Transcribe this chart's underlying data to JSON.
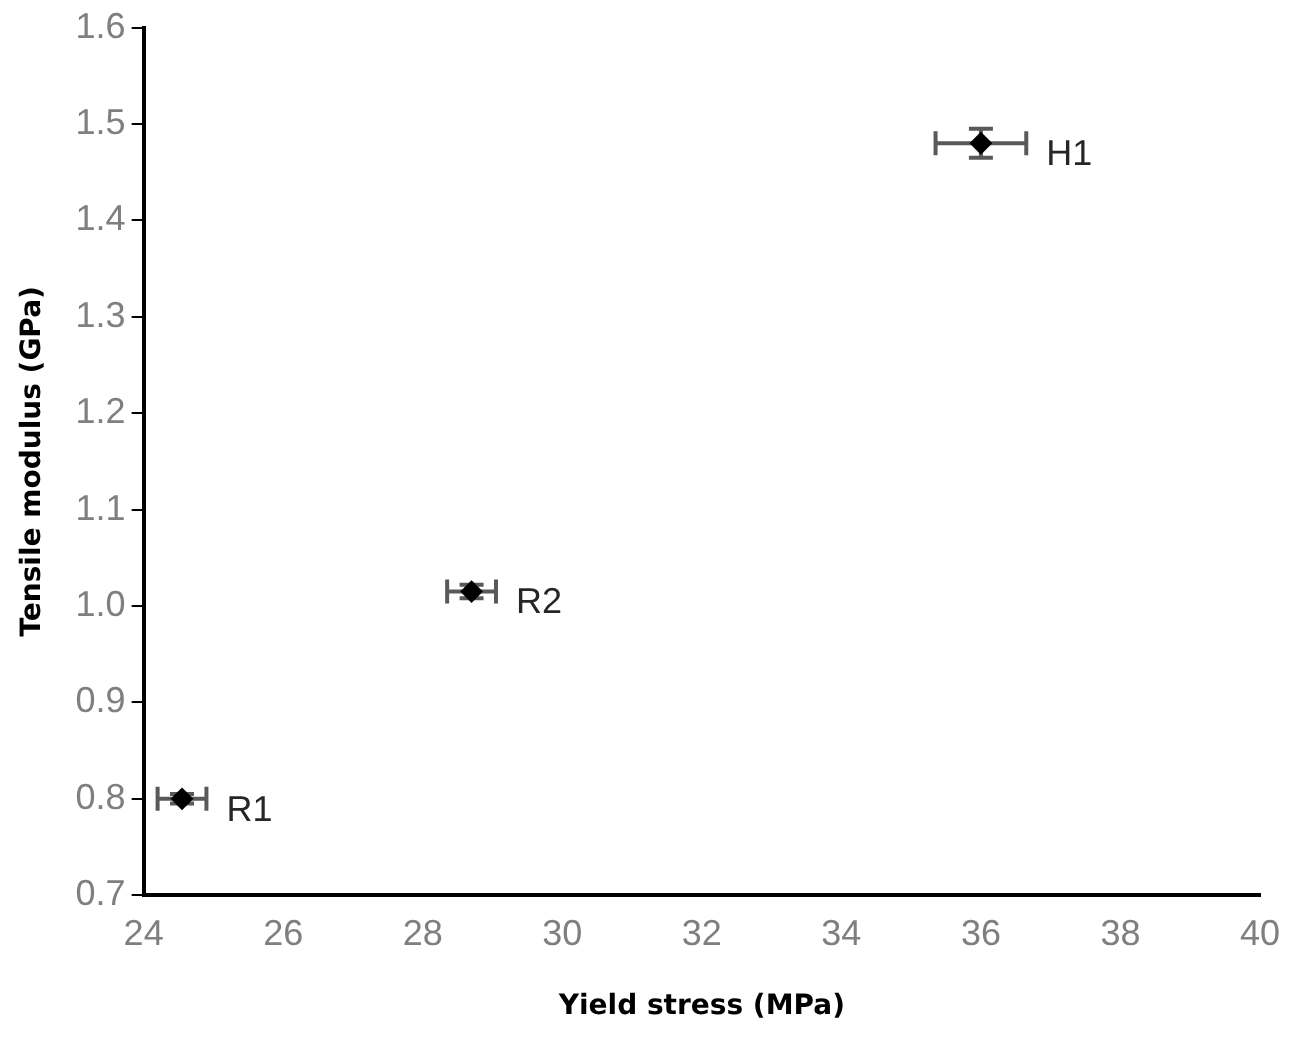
{
  "chart_data": {
    "type": "scatter",
    "xlabel": "Yield stress (MPa)",
    "ylabel": "Tensile modulus (GPa)",
    "x": [
      24.55,
      28.7,
      36.0
    ],
    "series": [
      {
        "color": "#000000",
        "values": [
          0.8,
          1.015,
          1.48
        ],
        "errors": [
          0.005,
          0.007,
          0.015
        ],
        "xerrors": [
          0.35,
          0.35,
          0.65
        ]
      }
    ],
    "xlim": [
      24,
      40
    ],
    "xticks": [
      24,
      26,
      28,
      30,
      32,
      34,
      36,
      38,
      40
    ],
    "ylim": [
      0.7,
      1.6
    ],
    "yticks": [
      {
        "value": 0.7,
        "label": "0.7"
      },
      {
        "value": 0.8,
        "label": "0.8"
      },
      {
        "value": 0.9,
        "label": "0.9"
      },
      {
        "value": 1.0,
        "label": "1.0"
      },
      {
        "value": 1.1,
        "label": "1.1"
      },
      {
        "value": 1.2,
        "label": "1.2"
      },
      {
        "value": 1.3,
        "label": "1.3"
      },
      {
        "value": 1.4,
        "label": "1.4"
      },
      {
        "value": 1.5,
        "label": "1.5"
      },
      {
        "value": 1.6,
        "label": "1.6"
      }
    ],
    "annotations": [
      {
        "text": "R1",
        "x": 24.55,
        "y": 0.8
      },
      {
        "text": "R2",
        "x": 28.7,
        "y": 1.015
      },
      {
        "text": "H1",
        "x": 36.0,
        "y": 1.48
      }
    ],
    "marker": "diamond",
    "grid": false,
    "legend": false
  }
}
